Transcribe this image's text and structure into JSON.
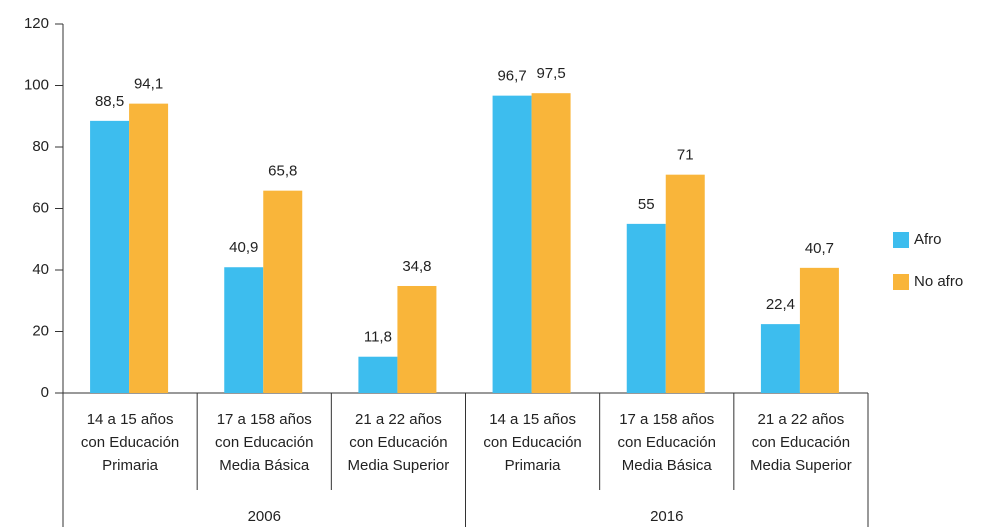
{
  "chart_data": {
    "type": "bar",
    "groups": [
      {
        "name": "2006",
        "categories": [
          [
            "14 a 15 años",
            "con Educación",
            "Primaria"
          ],
          [
            "17 a 158 años",
            "con Educación",
            "Media Básica"
          ],
          [
            "21 a 22 años",
            "con Educación",
            "Media Superior"
          ]
        ]
      },
      {
        "name": "2016",
        "categories": [
          [
            "14 a 15 años",
            "con Educación",
            "Primaria"
          ],
          [
            "17 a 158 años",
            "con Educación",
            "Media Básica"
          ],
          [
            "21 a 22 años",
            "con Educación",
            "Media Superior"
          ]
        ]
      }
    ],
    "series": [
      {
        "name": "Afro",
        "color": "#3dbdee",
        "values": [
          88.5,
          40.9,
          11.8,
          96.7,
          55,
          22.4
        ],
        "value_labels": [
          "88,5",
          "40,9",
          "11,8",
          "96,7",
          "55",
          "22,4"
        ]
      },
      {
        "name": "No afro",
        "color": "#f9b53a",
        "values": [
          94.1,
          65.8,
          34.8,
          97.5,
          71,
          40.7
        ],
        "value_labels": [
          "94,1",
          "65,8",
          "34,8",
          "97,5",
          "71",
          "40,7"
        ]
      }
    ],
    "ylim": [
      0,
      120
    ],
    "yticks": [
      0,
      20,
      40,
      60,
      80,
      100,
      120
    ],
    "legend": "right"
  }
}
